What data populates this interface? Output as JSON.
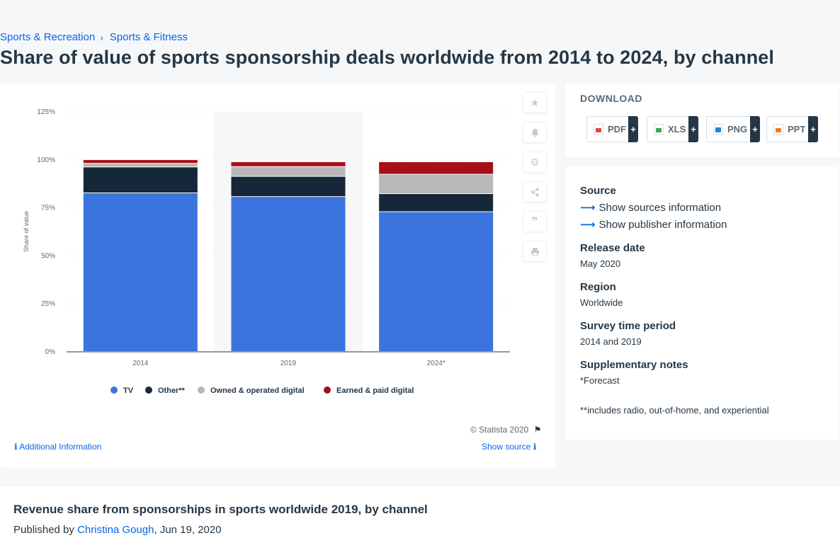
{
  "breadcrumb": [
    "Sports & Recreation",
    "Sports & Fitness"
  ],
  "page_title": "Share of value of sports sponsorship deals worldwide from 2014 to 2024, by channel",
  "chart_data": {
    "type": "bar",
    "stacked": true,
    "categories": [
      "2014",
      "2019",
      "2024*"
    ],
    "series": [
      {
        "name": "TV",
        "color": "#3b74dc",
        "values": [
          82.6,
          80.7,
          72.8
        ]
      },
      {
        "name": "Other**",
        "color": "#152738",
        "values": [
          13.5,
          10.5,
          9.4
        ]
      },
      {
        "name": "Owned & operated digital",
        "color": "#b8b8b8",
        "values": [
          1.9,
          5.1,
          10.1
        ]
      },
      {
        "name": "Earned & paid digital",
        "color": "#a70f17",
        "values": [
          1.9,
          2.5,
          6.5
        ]
      }
    ],
    "ylabel": "Share of value",
    "ylim": [
      0,
      125
    ],
    "yticks": [
      "0%",
      "25%",
      "50%",
      "75%",
      "100%",
      "125%"
    ],
    "grid": true,
    "legend_position": "bottom",
    "highlighted_category": "2019"
  },
  "tools": [
    "star-icon",
    "bell-icon",
    "gear-icon",
    "share-icon",
    "quote-icon",
    "print-icon"
  ],
  "copyright": "© Statista 2020",
  "additional_information": "Additional Information",
  "show_source": "Show source",
  "download": {
    "title": "DOWNLOAD",
    "buttons": [
      {
        "label": "PDF",
        "icon": "pdf-file-icon",
        "color": "#e04a3f"
      },
      {
        "label": "XLS",
        "icon": "xls-file-icon",
        "color": "#3aa655"
      },
      {
        "label": "PNG",
        "icon": "png-file-icon",
        "color": "#2a7fd4"
      },
      {
        "label": "PPT",
        "icon": "ppt-file-icon",
        "color": "#ef7b22"
      }
    ],
    "plus": "+"
  },
  "info": {
    "source_label": "Source",
    "show_sources": "Show sources information",
    "show_publisher": "Show publisher information",
    "release_date_label": "Release date",
    "release_date": "May 2020",
    "region_label": "Region",
    "region": "Worldwide",
    "survey_label": "Survey time period",
    "survey": "2014 and 2019",
    "notes_label": "Supplementary notes",
    "note1": "*Forecast",
    "note2": "**includes radio, out-of-home, and experiential"
  },
  "related": {
    "title": "Revenue share from sponsorships in sports worldwide 2019, by channel",
    "published_prefix": "Published by",
    "author": "Christina Gough",
    "date": ", Jun 19, 2020"
  }
}
